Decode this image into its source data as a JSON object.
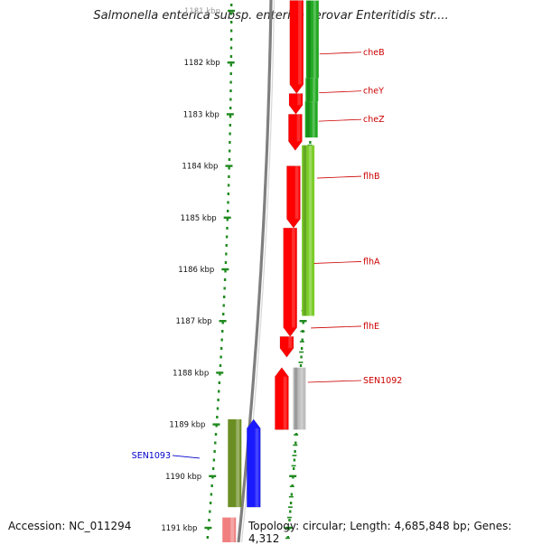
{
  "title": "Salmonella enterica subsp. enterica serovar Enteritidis str....",
  "footer": {
    "accession": "Accession: NC_011294",
    "summary": "Topology: circular; Length: 4,685,848 bp; Genes: 4,312"
  },
  "colors": {
    "strand_plus": "#ff0000",
    "strand_minus_green": "#22aa22",
    "blue_gene": "#1a1aff",
    "olive_gene": "#6b8e23",
    "grey_gene": "#bdbdbd",
    "pink_gene": "#f08080",
    "tick_green": "#1f8a1f",
    "label_red": "#cc0000",
    "label_blue": "#0000cc",
    "backbone": "#7f7f7f"
  },
  "diagram": {
    "ruler": {
      "unit": "kbp",
      "ticks": [
        {
          "kbp": 1181,
          "label": "1181 kbp"
        },
        {
          "kbp": 1182,
          "label": "1182 kbp"
        },
        {
          "kbp": 1183,
          "label": "1183 kbp"
        },
        {
          "kbp": 1184,
          "label": "1184 kbp"
        },
        {
          "kbp": 1185,
          "label": "1185 kbp"
        },
        {
          "kbp": 1186,
          "label": "1186 kbp"
        },
        {
          "kbp": 1187,
          "label": "1187 kbp"
        },
        {
          "kbp": 1188,
          "label": "1188 kbp"
        },
        {
          "kbp": 1189,
          "label": "1189 kbp"
        },
        {
          "kbp": 1190,
          "label": "1190 kbp"
        },
        {
          "kbp": 1191,
          "label": "1191 kbp"
        }
      ]
    },
    "genes": [
      {
        "name": "cheB",
        "start_kbp": 1180.8,
        "end_kbp": 1182.6,
        "strand": "-",
        "color": "red",
        "label_side": "right",
        "label_kbp": 1181.8
      },
      {
        "name": "cheY",
        "start_kbp": 1182.6,
        "end_kbp": 1183.0,
        "strand": "-",
        "color": "red",
        "label_side": "right",
        "label_kbp": 1182.55
      },
      {
        "name": "cheZ",
        "start_kbp": 1183.0,
        "end_kbp": 1183.7,
        "strand": "-",
        "color": "red",
        "label_side": "right",
        "label_kbp": 1183.1
      },
      {
        "name": "flhB",
        "start_kbp": 1184.0,
        "end_kbp": 1185.2,
        "strand": "-",
        "color": "red",
        "label_side": "right",
        "label_kbp": 1184.2
      },
      {
        "name": "flhA",
        "start_kbp": 1185.2,
        "end_kbp": 1187.3,
        "strand": "-",
        "color": "red",
        "label_side": "right",
        "label_kbp": 1185.85
      },
      {
        "name": "flhE",
        "start_kbp": 1187.3,
        "end_kbp": 1187.7,
        "strand": "-",
        "color": "red",
        "label_side": "right",
        "label_kbp": 1187.1
      },
      {
        "name": "SEN1092",
        "start_kbp": 1187.9,
        "end_kbp": 1189.1,
        "strand": "+",
        "color": "red",
        "label_side": "right",
        "label_kbp": 1188.15
      },
      {
        "name": "SEN1093",
        "start_kbp": 1188.9,
        "end_kbp": 1190.6,
        "strand": "+",
        "color": "blue",
        "label_side": "left",
        "label_kbp": 1189.6
      }
    ],
    "minus_track_blocks": [
      {
        "start_kbp": 1180.8,
        "end_kbp": 1182.3,
        "color": "green"
      },
      {
        "start_kbp": 1182.3,
        "end_kbp": 1182.75,
        "color": "green"
      },
      {
        "start_kbp": 1182.75,
        "end_kbp": 1183.45,
        "color": "green"
      },
      {
        "start_kbp": 1183.6,
        "end_kbp": 1186.9,
        "color": "green-yellow"
      },
      {
        "start_kbp": 1187.9,
        "end_kbp": 1189.1,
        "color": "grey"
      }
    ],
    "left_track_blocks": [
      {
        "start_kbp": 1188.9,
        "end_kbp": 1190.6,
        "color": "olive"
      },
      {
        "start_kbp": 1190.8,
        "end_kbp": 1191.5,
        "color": "pink"
      }
    ]
  }
}
